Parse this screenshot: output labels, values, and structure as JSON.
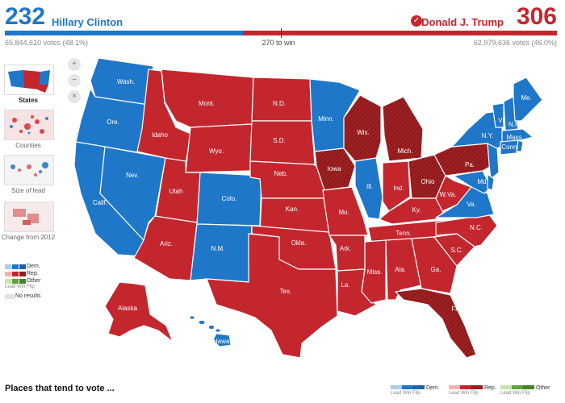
{
  "header": {
    "dem_votes": "232",
    "dem_name": "Hillary Clinton",
    "rep_votes": "306",
    "rep_name": "Donald J. Trump",
    "dem_popular": "65,844,610 votes (48.1%)",
    "rep_popular": "62,979,636 votes (46.0%)",
    "to_win": "270 to win",
    "dem_share": 0.431
  },
  "colors": {
    "dem": "#1f77c9",
    "rep": "#c4262e",
    "flip": "#8e1c1c",
    "other": "#5fa33a"
  },
  "zoom": {
    "in_icon": "zoom-in-icon",
    "out_icon": "zoom-out-icon",
    "reset_icon": "reset-icon"
  },
  "views": [
    {
      "label": "States",
      "selected": true
    },
    {
      "label": "Counties",
      "selected": false
    },
    {
      "label": "Size of lead",
      "selected": false
    },
    {
      "label": "Change from 2012",
      "selected": false
    }
  ],
  "legend": {
    "dem": "Dem.",
    "rep": "Rep.",
    "other": "Other",
    "sub": "Lead Win Flip",
    "no_results": "No results"
  },
  "footer": {
    "title": "Places that tend to vote ...",
    "lead": "Lead",
    "win": "Win",
    "flip": "Flip"
  },
  "state_labels": {
    "wa": "Wash.",
    "or": "Ore.",
    "ca": "Calif.",
    "nv": "Nev.",
    "id": "Idaho",
    "mt": "Mont.",
    "wy": "Wyo.",
    "ut": "Utah",
    "az": "Ariz.",
    "co": "Colo.",
    "nm": "N.M.",
    "nd": "N.D.",
    "sd": "S.D.",
    "ne": "Neb.",
    "ks": "Kan.",
    "ok": "Okla.",
    "tx": "Tex.",
    "mn": "Minn.",
    "ia": "Iowa",
    "mo": "Mo.",
    "ar": "Ark.",
    "la": "La.",
    "wi": "Wis.",
    "il": "Ill.",
    "mi": "Mich.",
    "in": "Ind.",
    "oh": "Ohio",
    "ky": "Ky.",
    "tn": "Tenn.",
    "ms": "Miss.",
    "al": "Ala.",
    "ga": "Ga.",
    "fl": "Fla.",
    "sc": "S.C.",
    "nc": "N.C.",
    "va": "Va.",
    "wv": "W.Va.",
    "pa": "Pa.",
    "ny": "N.Y.",
    "me": "Me.",
    "vt": "Vt.",
    "nh": "N.H.",
    "ma": "Mass.",
    "ct": "Conn.",
    "md": "Md.",
    "ak": "Alaska",
    "hi": "Hawaii"
  }
}
